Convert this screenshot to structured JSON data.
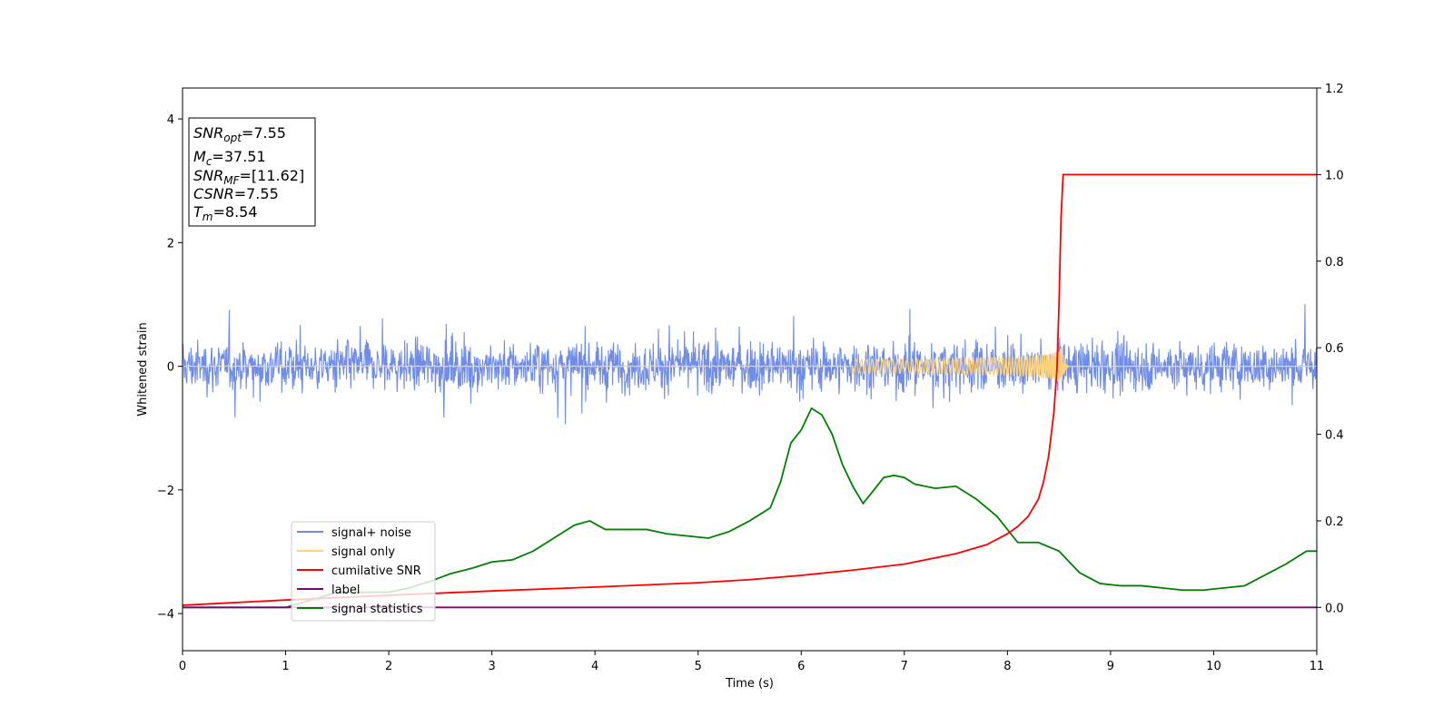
{
  "chart_data": {
    "type": "line",
    "xlabel": "Time (s)",
    "ylabel": "Whitened strain",
    "xlim": [
      0,
      11
    ],
    "ylim_left": [
      -4.6,
      4.5
    ],
    "ylim_right": [
      -0.1,
      1.2
    ],
    "x_ticks": [
      "0",
      "1",
      "2",
      "3",
      "4",
      "5",
      "6",
      "7",
      "8",
      "9",
      "10",
      "11"
    ],
    "y_left_ticks": [
      "−4",
      "−2",
      "0",
      "2",
      "4"
    ],
    "y_right_ticks": [
      "0.0",
      "0.2",
      "0.4",
      "0.6",
      "0.8",
      "1.0",
      "1.2"
    ],
    "grid": false,
    "legend_position": "lower-left",
    "stats_box": {
      "lines": [
        {
          "sym": "SNR",
          "sub": "opt",
          "val": "=7.55"
        },
        {
          "sym": "M",
          "sub": "c",
          "val": "=37.51"
        },
        {
          "sym": "SNR",
          "sub": "MF",
          "val": "=[11.62]"
        },
        {
          "sym": "CSNR",
          "sub": "",
          "val": "=7.55"
        },
        {
          "sym": "T",
          "sub": "m",
          "val": "=8.54"
        }
      ]
    },
    "series": [
      {
        "name": "signal+ noise",
        "color": "#6f8ce8",
        "axis": "left",
        "description_values": {
          "mean": 0,
          "typical_amplitude": 0.45,
          "peak_amplitude": 1.15
        }
      },
      {
        "name": "signal only",
        "color": "#ffd27a",
        "axis": "left",
        "chirp": {
          "merger_time": 8.54,
          "peak_amplitude": 0.35,
          "visible_from": 6.5
        }
      },
      {
        "name": "cumilative SNR",
        "color": "#ff0000",
        "axis": "right",
        "x": [
          0,
          1,
          2,
          3,
          4,
          5,
          5.5,
          6,
          6.5,
          7,
          7.5,
          7.8,
          8.0,
          8.1,
          8.2,
          8.3,
          8.35,
          8.4,
          8.45,
          8.48,
          8.5,
          8.52,
          8.54,
          8.57,
          9,
          10,
          11
        ],
        "values": [
          0.005,
          0.017,
          0.028,
          0.038,
          0.047,
          0.057,
          0.064,
          0.074,
          0.086,
          0.1,
          0.124,
          0.145,
          0.17,
          0.187,
          0.21,
          0.25,
          0.29,
          0.35,
          0.45,
          0.55,
          0.7,
          0.9,
          1.0,
          1.0,
          1.0,
          1.0,
          1.0
        ]
      },
      {
        "name": "label",
        "color": "#800080",
        "axis": "right",
        "x": [
          0,
          11
        ],
        "values": [
          0.0,
          0.0
        ]
      },
      {
        "name": "signal statistics",
        "color": "#008000",
        "axis": "right",
        "x": [
          0,
          1,
          1.5,
          2,
          2.2,
          2.4,
          2.6,
          2.8,
          3,
          3.2,
          3.4,
          3.6,
          3.8,
          3.95,
          4.1,
          4.3,
          4.5,
          4.7,
          4.9,
          5.1,
          5.3,
          5.5,
          5.7,
          5.8,
          5.9,
          6.0,
          6.1,
          6.2,
          6.3,
          6.4,
          6.5,
          6.6,
          6.7,
          6.8,
          6.9,
          7.0,
          7.1,
          7.3,
          7.5,
          7.7,
          7.9,
          8.1,
          8.3,
          8.5,
          8.7,
          8.9,
          9.1,
          9.3,
          9.5,
          9.7,
          9.9,
          10.1,
          10.3,
          10.5,
          10.7,
          10.9,
          11
        ],
        "values": [
          0.0,
          0.0,
          0.035,
          0.035,
          0.045,
          0.06,
          0.078,
          0.09,
          0.105,
          0.11,
          0.13,
          0.16,
          0.19,
          0.2,
          0.18,
          0.18,
          0.18,
          0.17,
          0.165,
          0.16,
          0.175,
          0.2,
          0.23,
          0.29,
          0.38,
          0.41,
          0.46,
          0.445,
          0.4,
          0.33,
          0.28,
          0.24,
          0.27,
          0.3,
          0.305,
          0.3,
          0.285,
          0.275,
          0.28,
          0.25,
          0.21,
          0.15,
          0.15,
          0.13,
          0.08,
          0.055,
          0.05,
          0.05,
          0.045,
          0.04,
          0.04,
          0.045,
          0.05,
          0.075,
          0.1,
          0.13,
          0.13
        ]
      }
    ]
  }
}
